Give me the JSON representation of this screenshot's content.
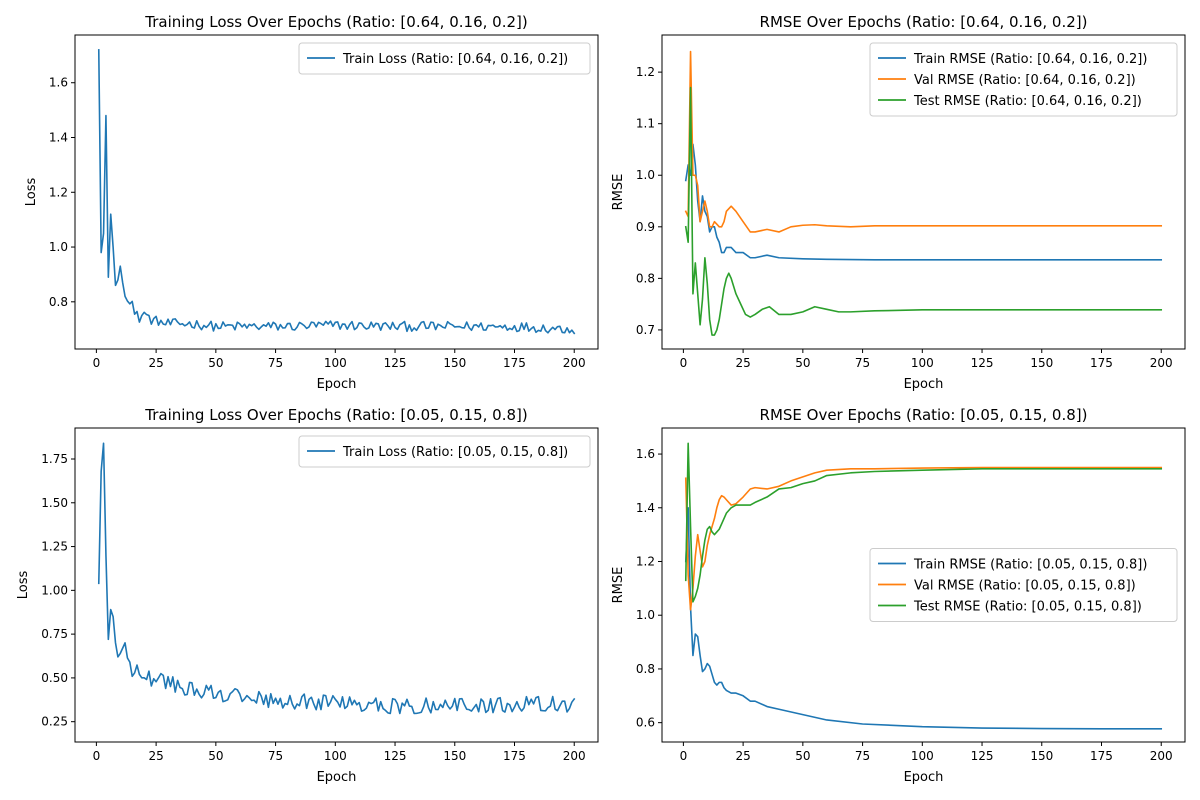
{
  "figure": {
    "background": "#ffffff"
  },
  "colors": {
    "train": "#1f77b4",
    "val": "#ff7f0e",
    "test": "#2ca02c"
  },
  "chart_data": [
    {
      "type": "line",
      "title": "Training Loss Over Epochs (Ratio: [0.64, 0.16, 0.2])",
      "xlabel": "Epoch",
      "ylabel": "Loss",
      "xlim": [
        -8.95,
        209.95
      ],
      "ylim": [
        0.6277,
        1.7743
      ],
      "xticks": [
        0,
        25,
        50,
        75,
        100,
        125,
        150,
        175,
        200
      ],
      "yticks": [
        0.8,
        1.0,
        1.2,
        1.4,
        1.6
      ],
      "ytick_labels": [
        "0.8",
        "1.0",
        "1.2",
        "1.4",
        "1.6"
      ],
      "grid": false,
      "legend_position": "upper right",
      "noise": 0.018,
      "series": [
        {
          "name": "Train Loss (Ratio: [0.64, 0.16, 0.2])",
          "color_key": "train",
          "x": [
            1,
            2,
            3,
            4,
            5,
            6,
            7,
            8,
            9,
            10,
            11,
            12,
            13,
            14,
            15,
            16,
            17,
            18,
            19,
            20,
            22,
            24,
            26,
            28,
            30,
            35,
            40,
            50,
            60,
            80,
            100,
            125,
            150,
            175,
            200
          ],
          "y": [
            1.72,
            0.98,
            1.05,
            1.48,
            0.89,
            1.12,
            1.0,
            0.86,
            0.88,
            0.93,
            0.87,
            0.82,
            0.82,
            0.81,
            0.8,
            0.75,
            0.75,
            0.74,
            0.75,
            0.76,
            0.74,
            0.73,
            0.73,
            0.72,
            0.72,
            0.72,
            0.72,
            0.71,
            0.71,
            0.71,
            0.715,
            0.71,
            0.71,
            0.71,
            0.7
          ]
        }
      ]
    },
    {
      "type": "line",
      "title": "RMSE Over Epochs (Ratio: [0.64, 0.16, 0.2])",
      "xlabel": "Epoch",
      "ylabel": "RMSE",
      "xlim": [
        -8.95,
        209.95
      ],
      "ylim": [
        0.663,
        1.272
      ],
      "xticks": [
        0,
        25,
        50,
        75,
        100,
        125,
        150,
        175,
        200
      ],
      "yticks": [
        0.7,
        0.8,
        0.9,
        1.0,
        1.1,
        1.2
      ],
      "ytick_labels": [
        "0.7",
        "0.8",
        "0.9",
        "1.0",
        "1.1",
        "1.2"
      ],
      "grid": false,
      "legend_position": "upper right",
      "series": [
        {
          "name": "Train RMSE (Ratio: [0.64, 0.16, 0.2])",
          "color_key": "train",
          "x": [
            1,
            2,
            3,
            4,
            5,
            6,
            7,
            8,
            9,
            10,
            11,
            12,
            13,
            14,
            15,
            16,
            17,
            18,
            20,
            22,
            25,
            28,
            30,
            35,
            40,
            50,
            60,
            80,
            100,
            150,
            200
          ],
          "y": [
            0.99,
            1.02,
            1.0,
            1.06,
            1.02,
            0.95,
            0.91,
            0.96,
            0.93,
            0.92,
            0.89,
            0.9,
            0.9,
            0.88,
            0.87,
            0.85,
            0.85,
            0.86,
            0.86,
            0.85,
            0.85,
            0.84,
            0.84,
            0.845,
            0.84,
            0.838,
            0.837,
            0.836,
            0.836,
            0.836,
            0.836
          ]
        },
        {
          "name": "Val RMSE (Ratio: [0.64, 0.16, 0.2])",
          "color_key": "val",
          "x": [
            1,
            2,
            3,
            4,
            5,
            6,
            7,
            8,
            9,
            10,
            11,
            12,
            13,
            14,
            15,
            16,
            17,
            18,
            20,
            22,
            25,
            28,
            30,
            35,
            40,
            45,
            50,
            55,
            60,
            70,
            80,
            100,
            150,
            200
          ],
          "y": [
            0.93,
            0.92,
            1.24,
            1.0,
            1.0,
            0.98,
            0.91,
            0.93,
            0.95,
            0.93,
            0.9,
            0.9,
            0.91,
            0.905,
            0.9,
            0.9,
            0.91,
            0.93,
            0.94,
            0.93,
            0.91,
            0.89,
            0.89,
            0.895,
            0.89,
            0.9,
            0.903,
            0.904,
            0.902,
            0.9,
            0.902,
            0.902,
            0.902,
            0.902
          ]
        },
        {
          "name": "Test RMSE (Ratio: [0.64, 0.16, 0.2])",
          "color_key": "test",
          "x": [
            1,
            2,
            3,
            4,
            5,
            6,
            7,
            8,
            9,
            10,
            11,
            12,
            13,
            14,
            15,
            16,
            17,
            18,
            19,
            20,
            22,
            24,
            26,
            28,
            30,
            33,
            36,
            40,
            45,
            50,
            55,
            60,
            65,
            70,
            80,
            100,
            150,
            200
          ],
          "y": [
            0.9,
            0.87,
            1.17,
            0.77,
            0.83,
            0.77,
            0.71,
            0.76,
            0.84,
            0.79,
            0.72,
            0.69,
            0.69,
            0.7,
            0.72,
            0.75,
            0.78,
            0.8,
            0.81,
            0.8,
            0.77,
            0.75,
            0.73,
            0.725,
            0.73,
            0.74,
            0.745,
            0.73,
            0.73,
            0.735,
            0.745,
            0.74,
            0.735,
            0.735,
            0.737,
            0.739,
            0.739,
            0.739
          ]
        }
      ]
    },
    {
      "type": "line",
      "title": "Training Loss Over Epochs (Ratio: [0.05, 0.15, 0.8])",
      "xlabel": "Epoch",
      "ylabel": "Loss",
      "xlim": [
        -8.95,
        209.95
      ],
      "ylim": [
        0.134,
        1.927
      ],
      "xticks": [
        0,
        25,
        50,
        75,
        100,
        125,
        150,
        175,
        200
      ],
      "yticks": [
        0.25,
        0.5,
        0.75,
        1.0,
        1.25,
        1.5,
        1.75
      ],
      "ytick_labels": [
        "0.25",
        "0.50",
        "0.75",
        "1.00",
        "1.25",
        "1.50",
        "1.75"
      ],
      "grid": false,
      "legend_position": "upper right",
      "noise": 0.045,
      "series": [
        {
          "name": "Train Loss (Ratio: [0.05, 0.15, 0.8])",
          "color_key": "train",
          "x": [
            1,
            2,
            3,
            4,
            5,
            6,
            7,
            8,
            9,
            10,
            11,
            12,
            13,
            14,
            15,
            16,
            17,
            18,
            20,
            22,
            25,
            28,
            30,
            35,
            40,
            45,
            50,
            60,
            75,
            100,
            125,
            150,
            175,
            200
          ],
          "y": [
            1.04,
            1.68,
            1.84,
            1.2,
            0.72,
            0.89,
            0.85,
            0.7,
            0.62,
            0.64,
            0.67,
            0.7,
            0.65,
            0.58,
            0.52,
            0.5,
            0.6,
            0.55,
            0.52,
            0.5,
            0.48,
            0.48,
            0.47,
            0.45,
            0.43,
            0.42,
            0.41,
            0.39,
            0.37,
            0.36,
            0.34,
            0.34,
            0.35,
            0.35
          ]
        }
      ]
    },
    {
      "type": "line",
      "title": "RMSE Over Epochs (Ratio: [0.05, 0.15, 0.8])",
      "xlabel": "Epoch",
      "ylabel": "RMSE",
      "xlim": [
        -8.95,
        209.95
      ],
      "ylim": [
        0.528,
        1.697
      ],
      "xticks": [
        0,
        25,
        50,
        75,
        100,
        125,
        150,
        175,
        200
      ],
      "yticks": [
        0.6,
        0.8,
        1.0,
        1.2,
        1.4,
        1.6
      ],
      "ytick_labels": [
        "0.6",
        "0.8",
        "1.0",
        "1.2",
        "1.4",
        "1.6"
      ],
      "grid": false,
      "legend_position": "center right",
      "series": [
        {
          "name": "Train RMSE (Ratio: [0.05, 0.15, 0.8])",
          "color_key": "train",
          "x": [
            1,
            2,
            3,
            4,
            5,
            6,
            7,
            8,
            9,
            10,
            11,
            12,
            13,
            14,
            15,
            16,
            17,
            18,
            20,
            22,
            25,
            28,
            30,
            35,
            40,
            50,
            60,
            75,
            100,
            125,
            150,
            175,
            200
          ],
          "y": [
            1.2,
            1.4,
            1.03,
            0.85,
            0.93,
            0.92,
            0.85,
            0.79,
            0.8,
            0.82,
            0.81,
            0.78,
            0.75,
            0.74,
            0.75,
            0.75,
            0.73,
            0.72,
            0.71,
            0.71,
            0.7,
            0.68,
            0.68,
            0.66,
            0.65,
            0.63,
            0.61,
            0.595,
            0.585,
            0.58,
            0.578,
            0.577,
            0.577
          ]
        },
        {
          "name": "Val RMSE (Ratio: [0.05, 0.15, 0.8])",
          "color_key": "val",
          "x": [
            1,
            2,
            3,
            4,
            5,
            6,
            7,
            8,
            9,
            10,
            11,
            12,
            13,
            14,
            15,
            16,
            17,
            18,
            20,
            22,
            25,
            28,
            30,
            35,
            40,
            45,
            50,
            55,
            60,
            70,
            80,
            100,
            125,
            150,
            175,
            200
          ],
          "y": [
            1.51,
            1.15,
            1.02,
            1.1,
            1.22,
            1.3,
            1.24,
            1.18,
            1.2,
            1.26,
            1.3,
            1.33,
            1.36,
            1.4,
            1.43,
            1.445,
            1.44,
            1.43,
            1.41,
            1.415,
            1.44,
            1.47,
            1.475,
            1.47,
            1.48,
            1.5,
            1.515,
            1.53,
            1.54,
            1.545,
            1.545,
            1.548,
            1.55,
            1.55,
            1.55,
            1.55
          ]
        },
        {
          "name": "Test RMSE (Ratio: [0.05, 0.15, 0.8])",
          "color_key": "test",
          "x": [
            1,
            2,
            3,
            4,
            5,
            6,
            7,
            8,
            9,
            10,
            11,
            12,
            13,
            14,
            15,
            16,
            17,
            18,
            20,
            22,
            25,
            28,
            30,
            35,
            40,
            45,
            50,
            55,
            60,
            70,
            80,
            100,
            125,
            150,
            175,
            200
          ],
          "y": [
            1.13,
            1.64,
            1.33,
            1.05,
            1.07,
            1.1,
            1.15,
            1.22,
            1.28,
            1.32,
            1.33,
            1.31,
            1.3,
            1.31,
            1.32,
            1.34,
            1.36,
            1.38,
            1.4,
            1.41,
            1.41,
            1.41,
            1.42,
            1.44,
            1.47,
            1.475,
            1.49,
            1.5,
            1.52,
            1.53,
            1.535,
            1.54,
            1.545,
            1.545,
            1.545,
            1.545
          ]
        }
      ]
    }
  ]
}
